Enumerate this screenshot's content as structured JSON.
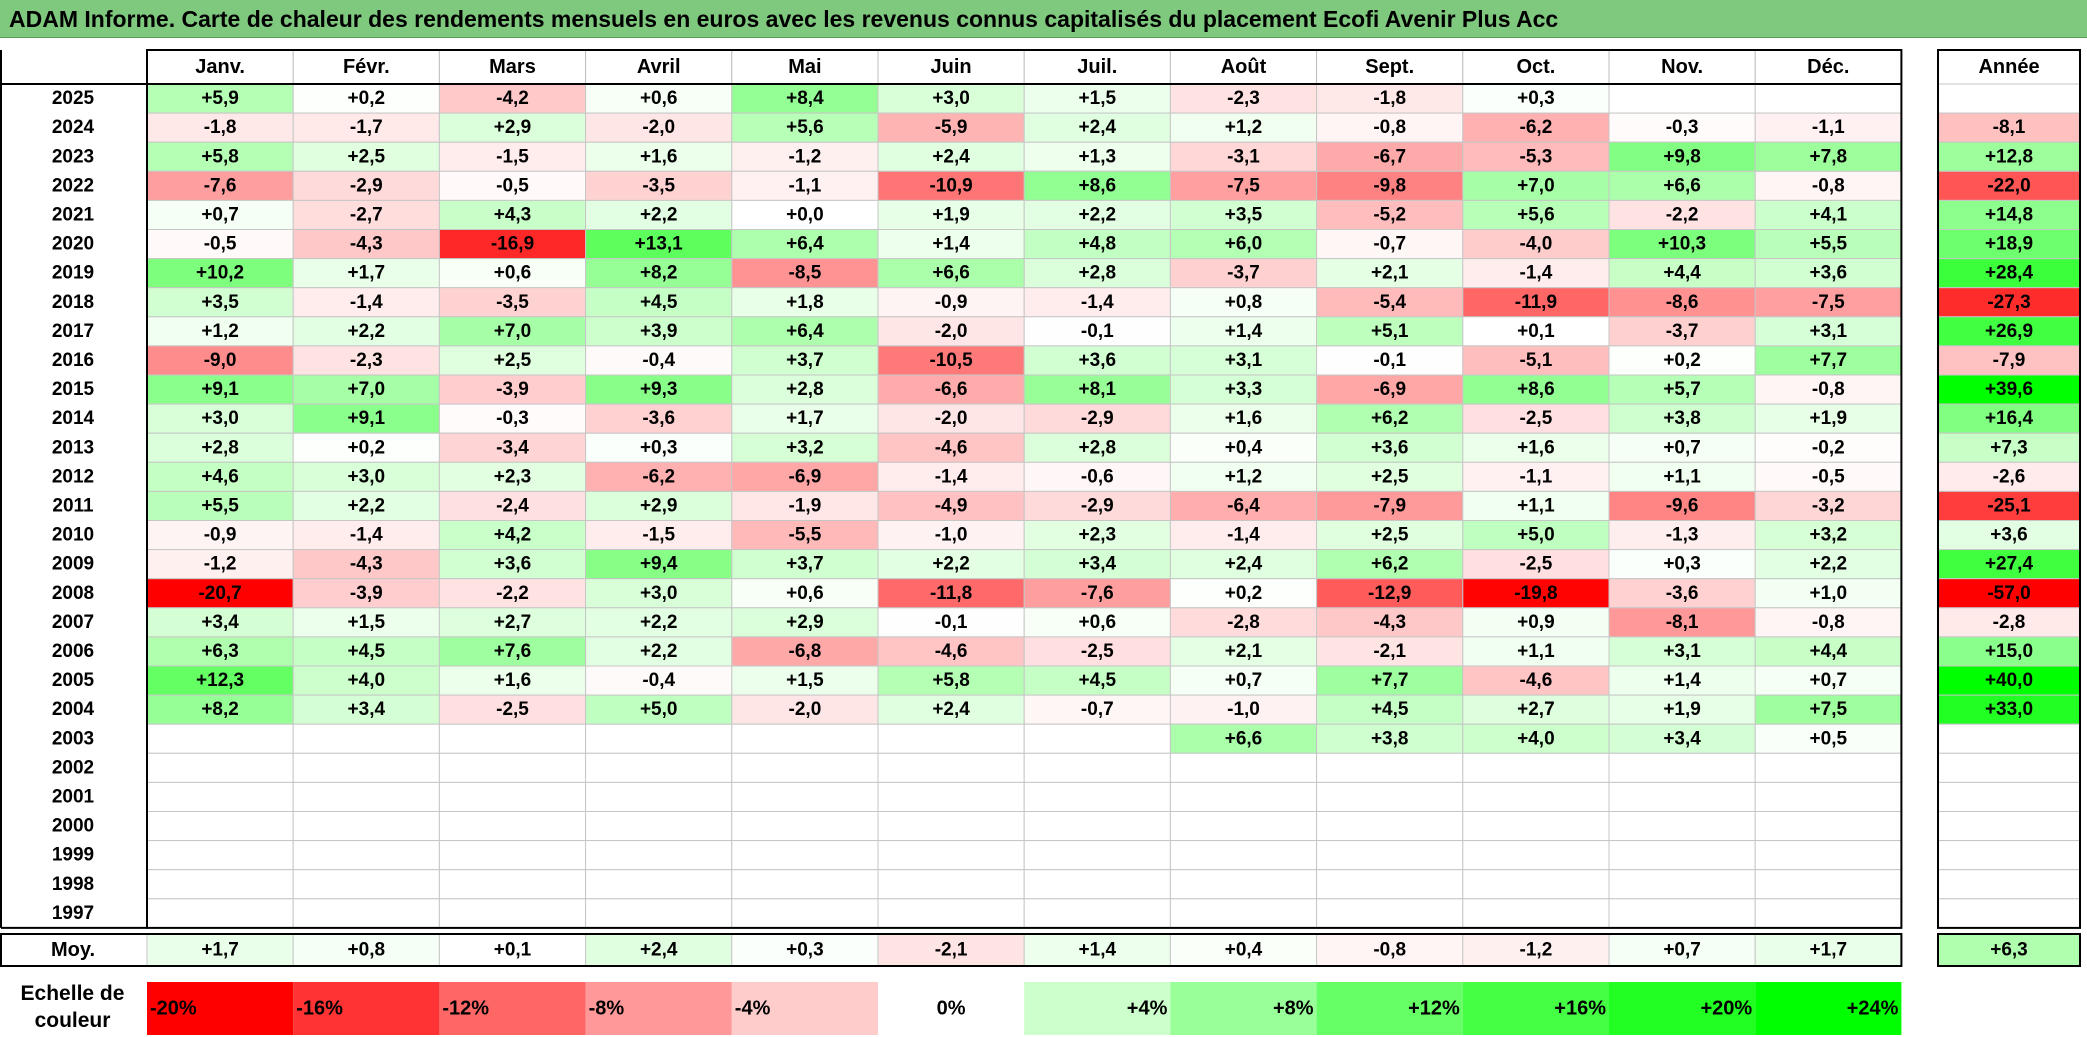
{
  "title": "ADAM Informe. Carte de chaleur des rendements mensuels en euros avec les revenus connus capitalisés du placement Ecofi Avenir Plus Acc",
  "chart_data": {
    "type": "heatmap",
    "columns": [
      "Janv.",
      "Févr.",
      "Mars",
      "Avril",
      "Mai",
      "Juin",
      "Juil.",
      "Août",
      "Sept.",
      "Oct.",
      "Nov.",
      "Déc."
    ],
    "annual_header": "Année",
    "rows": [
      {
        "year": "2025",
        "values": [
          "+5,9",
          "+0,2",
          "-4,2",
          "+0,6",
          "+8,4",
          "+3,0",
          "+1,5",
          "-2,3",
          "-1,8",
          "+0,3",
          "",
          ""
        ],
        "annual": ""
      },
      {
        "year": "2024",
        "values": [
          "-1,8",
          "-1,7",
          "+2,9",
          "-2,0",
          "+5,6",
          "-5,9",
          "+2,4",
          "+1,2",
          "-0,8",
          "-6,2",
          "-0,3",
          "-1,1"
        ],
        "annual": "-8,1"
      },
      {
        "year": "2023",
        "values": [
          "+5,8",
          "+2,5",
          "-1,5",
          "+1,6",
          "-1,2",
          "+2,4",
          "+1,3",
          "-3,1",
          "-6,7",
          "-5,3",
          "+9,8",
          "+7,8"
        ],
        "annual": "+12,8"
      },
      {
        "year": "2022",
        "values": [
          "-7,6",
          "-2,9",
          "-0,5",
          "-3,5",
          "-1,1",
          "-10,9",
          "+8,6",
          "-7,5",
          "-9,8",
          "+7,0",
          "+6,6",
          "-0,8"
        ],
        "annual": "-22,0"
      },
      {
        "year": "2021",
        "values": [
          "+0,7",
          "-2,7",
          "+4,3",
          "+2,2",
          "+0,0",
          "+1,9",
          "+2,2",
          "+3,5",
          "-5,2",
          "+5,6",
          "-2,2",
          "+4,1"
        ],
        "annual": "+14,8"
      },
      {
        "year": "2020",
        "values": [
          "-0,5",
          "-4,3",
          "-16,9",
          "+13,1",
          "+6,4",
          "+1,4",
          "+4,8",
          "+6,0",
          "-0,7",
          "-4,0",
          "+10,3",
          "+5,5"
        ],
        "annual": "+18,9"
      },
      {
        "year": "2019",
        "values": [
          "+10,2",
          "+1,7",
          "+0,6",
          "+8,2",
          "-8,5",
          "+6,6",
          "+2,8",
          "-3,7",
          "+2,1",
          "-1,4",
          "+4,4",
          "+3,6"
        ],
        "annual": "+28,4"
      },
      {
        "year": "2018",
        "values": [
          "+3,5",
          "-1,4",
          "-3,5",
          "+4,5",
          "+1,8",
          "-0,9",
          "-1,4",
          "+0,8",
          "-5,4",
          "-11,9",
          "-8,6",
          "-7,5"
        ],
        "annual": "-27,3"
      },
      {
        "year": "2017",
        "values": [
          "+1,2",
          "+2,2",
          "+7,0",
          "+3,9",
          "+6,4",
          "-2,0",
          "-0,1",
          "+1,4",
          "+5,1",
          "+0,1",
          "-3,7",
          "+3,1"
        ],
        "annual": "+26,9"
      },
      {
        "year": "2016",
        "values": [
          "-9,0",
          "-2,3",
          "+2,5",
          "-0,4",
          "+3,7",
          "-10,5",
          "+3,6",
          "+3,1",
          "-0,1",
          "-5,1",
          "+0,2",
          "+7,7"
        ],
        "annual": "-7,9"
      },
      {
        "year": "2015",
        "values": [
          "+9,1",
          "+7,0",
          "-3,9",
          "+9,3",
          "+2,8",
          "-6,6",
          "+8,1",
          "+3,3",
          "-6,9",
          "+8,6",
          "+5,7",
          "-0,8"
        ],
        "annual": "+39,6"
      },
      {
        "year": "2014",
        "values": [
          "+3,0",
          "+9,1",
          "-0,3",
          "-3,6",
          "+1,7",
          "-2,0",
          "-2,9",
          "+1,6",
          "+6,2",
          "-2,5",
          "+3,8",
          "+1,9"
        ],
        "annual": "+16,4"
      },
      {
        "year": "2013",
        "values": [
          "+2,8",
          "+0,2",
          "-3,4",
          "+0,3",
          "+3,2",
          "-4,6",
          "+2,8",
          "+0,4",
          "+3,6",
          "+1,6",
          "+0,7",
          "-0,2"
        ],
        "annual": "+7,3"
      },
      {
        "year": "2012",
        "values": [
          "+4,6",
          "+3,0",
          "+2,3",
          "-6,2",
          "-6,9",
          "-1,4",
          "-0,6",
          "+1,2",
          "+2,5",
          "-1,1",
          "+1,1",
          "-0,5"
        ],
        "annual": "-2,6"
      },
      {
        "year": "2011",
        "values": [
          "+5,5",
          "+2,2",
          "-2,4",
          "+2,9",
          "-1,9",
          "-4,9",
          "-2,9",
          "-6,4",
          "-7,9",
          "+1,1",
          "-9,6",
          "-3,2"
        ],
        "annual": "-25,1"
      },
      {
        "year": "2010",
        "values": [
          "-0,9",
          "-1,4",
          "+4,2",
          "-1,5",
          "-5,5",
          "-1,0",
          "+2,3",
          "-1,4",
          "+2,5",
          "+5,0",
          "-1,3",
          "+3,2"
        ],
        "annual": "+3,6"
      },
      {
        "year": "2009",
        "values": [
          "-1,2",
          "-4,3",
          "+3,6",
          "+9,4",
          "+3,7",
          "+2,2",
          "+3,4",
          "+2,4",
          "+6,2",
          "-2,5",
          "+0,3",
          "+2,2"
        ],
        "annual": "+27,4"
      },
      {
        "year": "2008",
        "values": [
          "-20,7",
          "-3,9",
          "-2,2",
          "+3,0",
          "+0,6",
          "-11,8",
          "-7,6",
          "+0,2",
          "-12,9",
          "-19,8",
          "-3,6",
          "+1,0"
        ],
        "annual": "-57,0"
      },
      {
        "year": "2007",
        "values": [
          "+3,4",
          "+1,5",
          "+2,7",
          "+2,2",
          "+2,9",
          "-0,1",
          "+0,6",
          "-2,8",
          "-4,3",
          "+0,9",
          "-8,1",
          "-0,8"
        ],
        "annual": "-2,8"
      },
      {
        "year": "2006",
        "values": [
          "+6,3",
          "+4,5",
          "+7,6",
          "+2,2",
          "-6,8",
          "-4,6",
          "-2,5",
          "+2,1",
          "-2,1",
          "+1,1",
          "+3,1",
          "+4,4"
        ],
        "annual": "+15,0"
      },
      {
        "year": "2005",
        "values": [
          "+12,3",
          "+4,0",
          "+1,6",
          "-0,4",
          "+1,5",
          "+5,8",
          "+4,5",
          "+0,7",
          "+7,7",
          "-4,6",
          "+1,4",
          "+0,7"
        ],
        "annual": "+40,0"
      },
      {
        "year": "2004",
        "values": [
          "+8,2",
          "+3,4",
          "-2,5",
          "+5,0",
          "-2,0",
          "+2,4",
          "-0,7",
          "-1,0",
          "+4,5",
          "+2,7",
          "+1,9",
          "+7,5"
        ],
        "annual": "+33,0"
      },
      {
        "year": "2003",
        "values": [
          "",
          "",
          "",
          "",
          "",
          "",
          "",
          "+6,6",
          "+3,8",
          "+4,0",
          "+3,4",
          "+0,5"
        ],
        "annual": ""
      },
      {
        "year": "2002",
        "values": [
          "",
          "",
          "",
          "",
          "",
          "",
          "",
          "",
          "",
          "",
          "",
          ""
        ],
        "annual": ""
      },
      {
        "year": "2001",
        "values": [
          "",
          "",
          "",
          "",
          "",
          "",
          "",
          "",
          "",
          "",
          "",
          ""
        ],
        "annual": ""
      },
      {
        "year": "2000",
        "values": [
          "",
          "",
          "",
          "",
          "",
          "",
          "",
          "",
          "",
          "",
          "",
          ""
        ],
        "annual": ""
      },
      {
        "year": "1999",
        "values": [
          "",
          "",
          "",
          "",
          "",
          "",
          "",
          "",
          "",
          "",
          "",
          ""
        ],
        "annual": ""
      },
      {
        "year": "1998",
        "values": [
          "",
          "",
          "",
          "",
          "",
          "",
          "",
          "",
          "",
          "",
          "",
          ""
        ],
        "annual": ""
      },
      {
        "year": "1997",
        "values": [
          "",
          "",
          "",
          "",
          "",
          "",
          "",
          "",
          "",
          "",
          "",
          ""
        ],
        "annual": ""
      }
    ],
    "average": {
      "label": "Moy.",
      "values": [
        "+1,7",
        "+0,8",
        "+0,1",
        "+2,4",
        "+0,3",
        "-2,1",
        "+1,4",
        "+0,4",
        "-0,8",
        "-1,2",
        "+0,7",
        "+1,7"
      ],
      "annual": "+6,3"
    },
    "color_scale": {
      "label_line1": "Echelle de",
      "label_line2": "couleur",
      "stops": [
        {
          "label": "-20%",
          "value": -20,
          "color": "#ff0000"
        },
        {
          "label": "-16%",
          "value": -16,
          "color": "#ff3333"
        },
        {
          "label": "-12%",
          "value": -12,
          "color": "#ff6666"
        },
        {
          "label": "-8%",
          "value": -8,
          "color": "#ff9999"
        },
        {
          "label": "-4%",
          "value": -4,
          "color": "#ffcccc"
        },
        {
          "label": "0%",
          "value": 0,
          "color": "#ffffff"
        },
        {
          "label": "+4%",
          "value": 4,
          "color": "#ccffcc"
        },
        {
          "label": "+8%",
          "value": 8,
          "color": "#99ff99"
        },
        {
          "label": "+12%",
          "value": 12,
          "color": "#66ff66"
        },
        {
          "label": "+16%",
          "value": 16,
          "color": "#44ff44"
        },
        {
          "label": "+20%",
          "value": 20,
          "color": "#22ff22"
        },
        {
          "label": "+24%",
          "value": 24,
          "color": "#00ff00"
        }
      ]
    }
  }
}
